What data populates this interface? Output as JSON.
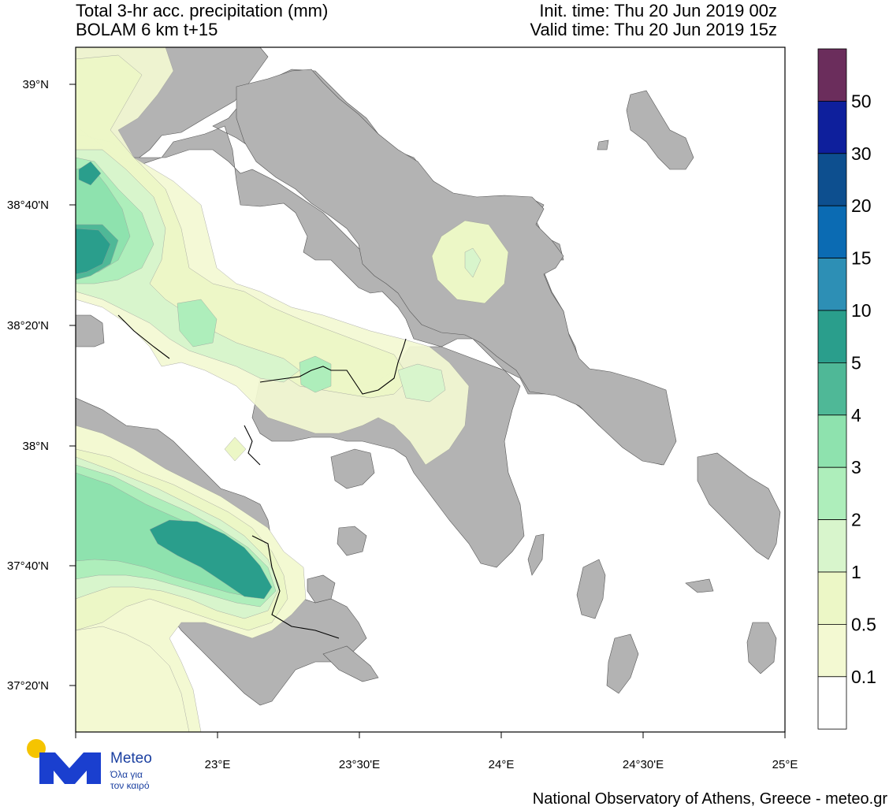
{
  "header": {
    "title": "Total 3-hr acc. precipitation (mm)",
    "model": "BOLAM 6 km t+15",
    "init_time": "Init. time: Thu 20 Jun 2019 00z",
    "valid_time": "Valid time: Thu 20 Jun 2019 15z"
  },
  "axes": {
    "lat_labels": [
      "39°N",
      "38°40'N",
      "38°20'N",
      "38°N",
      "37°40'N",
      "37°20'N"
    ],
    "lon_labels": [
      "23°E",
      "23°30'E",
      "24°E",
      "24°30'E",
      "25°E"
    ]
  },
  "colorbar": {
    "labels": [
      "50",
      "30",
      "20",
      "15",
      "10",
      "5",
      "4",
      "3",
      "2",
      "1",
      "0.5",
      "0.1"
    ],
    "colors": [
      "#6b2d5c",
      "#0e1f9c",
      "#0d4f8f",
      "#0b6bb3",
      "#2d8fb5",
      "#2a9e8c",
      "#4fb897",
      "#8ee2ae",
      "#aeeebb",
      "#d8f5cc",
      "#ecf7c6",
      "#f3f9d2",
      "#ffffff"
    ]
  },
  "colors": {
    "land": "#b3b3b3",
    "sea": "#ffffff",
    "border": "#000000"
  },
  "logo": {
    "name": "Meteo",
    "tagline1": "Όλα για",
    "tagline2": "τον καιρό"
  },
  "credit": "National Observatory of Athens, Greece - meteo.gr"
}
